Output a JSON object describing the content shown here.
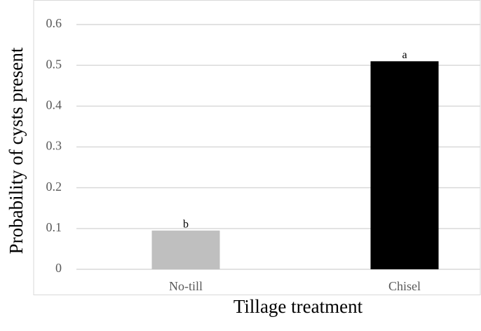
{
  "chart_data": {
    "type": "bar",
    "x_label": "Tillage treatment",
    "y_label": "Probability of cysts present",
    "categories": [
      "No-till",
      "Chisel"
    ],
    "values": [
      0.095,
      0.51
    ],
    "annotations": [
      "b",
      "a"
    ],
    "colors": [
      "#bfbfbf",
      "#000000"
    ],
    "ylim": [
      0,
      0.6
    ],
    "yticks": [
      0,
      0.1,
      0.2,
      0.3,
      0.4,
      0.5,
      0.6
    ],
    "grid": true
  }
}
